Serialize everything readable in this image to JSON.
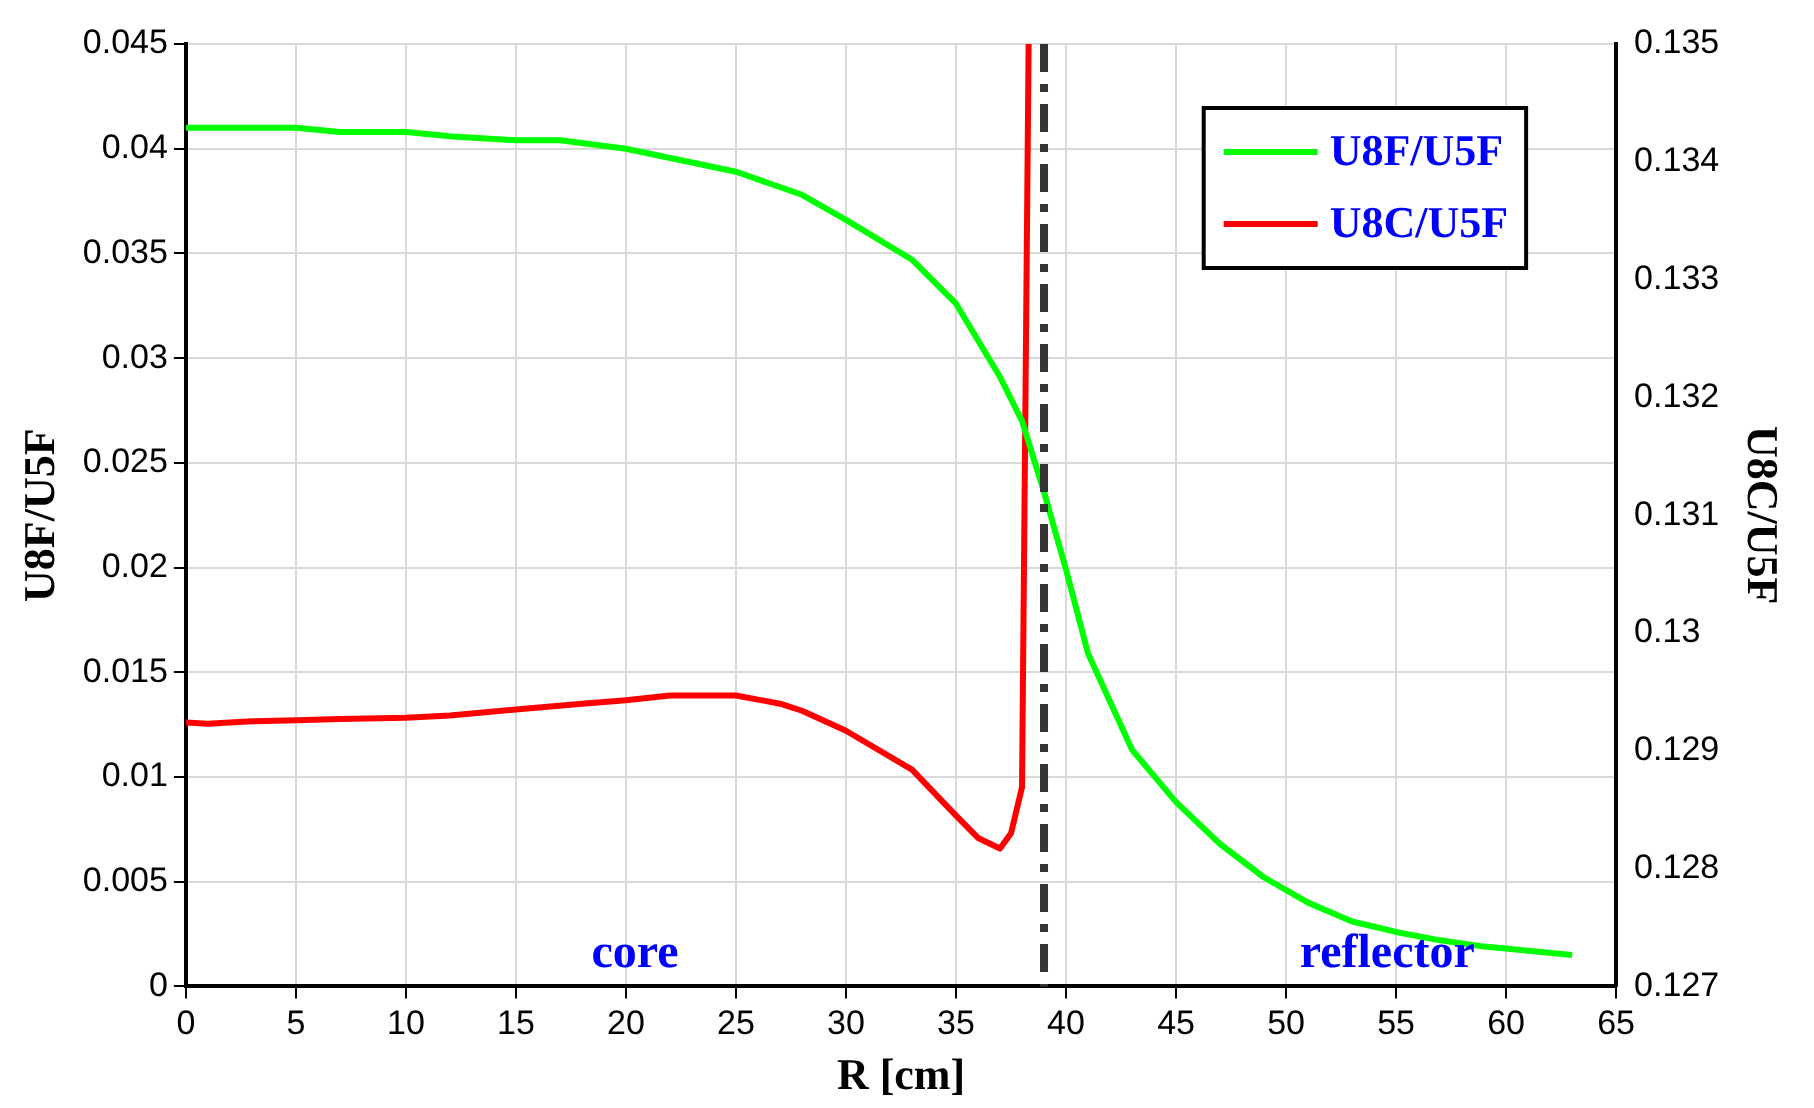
{
  "chart_data": {
    "type": "line",
    "xlabel": "R [cm]",
    "ylabel": "U8F/U5F",
    "y2label": "U8C/U5F",
    "xlim": [
      0,
      65
    ],
    "xticks": [
      0,
      5,
      10,
      15,
      20,
      25,
      30,
      35,
      40,
      45,
      50,
      55,
      60,
      65
    ],
    "ylim": [
      0,
      0.045
    ],
    "yticks": [
      0,
      0.005,
      0.01,
      0.015,
      0.02,
      0.025,
      0.03,
      0.035,
      0.04,
      0.045
    ],
    "y2lim": [
      0.127,
      0.135
    ],
    "y2ticks": [
      0.127,
      0.128,
      0.129,
      0.13,
      0.131,
      0.132,
      0.133,
      0.134,
      0.135
    ],
    "grid": true,
    "legend": "top right",
    "marker": "none",
    "line_style": "solid",
    "series": [
      {
        "name": "U8F/U5F",
        "color": "#00ff00",
        "x": [
          0,
          5,
          7,
          10,
          12,
          15,
          17,
          20,
          25,
          28,
          30,
          33,
          35,
          37,
          38,
          39,
          40,
          41,
          43,
          45,
          47,
          49,
          51,
          53,
          55,
          57,
          59,
          61,
          63
        ],
        "values": [
          0.041,
          0.041,
          0.0408,
          0.0408,
          0.0406,
          0.0404,
          0.0404,
          0.04,
          0.0389,
          0.0378,
          0.0366,
          0.0347,
          0.0326,
          0.0291,
          0.027,
          0.0236,
          0.0199,
          0.0159,
          0.0113,
          0.0088,
          0.0068,
          0.0052,
          0.004,
          0.0031,
          0.0026,
          0.0022,
          0.0019,
          0.0017,
          0.0015
        ]
      },
      {
        "name": "U8C/U5F",
        "color": "#ff0000",
        "axis": "y2",
        "x": [
          0,
          1,
          3,
          5,
          7,
          10,
          12,
          15,
          18,
          20,
          22,
          25,
          27,
          28,
          30,
          33,
          35,
          36,
          37,
          37.5,
          38,
          38.3
        ],
        "values": [
          0.12924,
          0.12923,
          0.12925,
          0.12926,
          0.12927,
          0.12928,
          0.1293,
          0.12935,
          0.1294,
          0.12943,
          0.12947,
          0.12947,
          0.1294,
          0.12934,
          0.12917,
          0.12884,
          0.12845,
          0.12826,
          0.12817,
          0.1283,
          0.12869,
          0.135
        ]
      }
    ],
    "ref_lines": [
      {
        "axis": "x",
        "value": 39,
        "color": "#333333",
        "line_style": "dashed"
      }
    ],
    "annotations": [
      "core",
      "reflector"
    ]
  }
}
